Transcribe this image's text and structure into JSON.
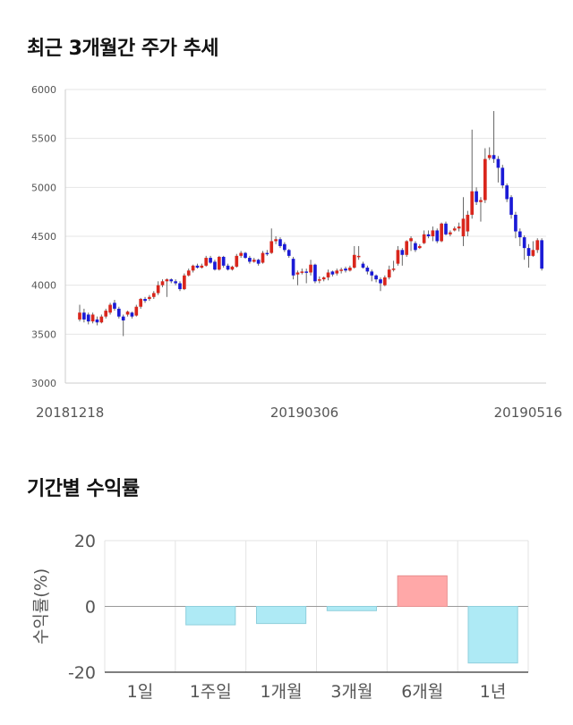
{
  "sections": {
    "price_title": "최근 3개월간 주가 추세",
    "return_title": "기간별 수익률"
  },
  "chart_data": [
    {
      "type": "candlestick",
      "title": "최근 3개월간 주가 추세",
      "ylim": [
        3000,
        6000
      ],
      "y_ticks": [
        3000,
        3500,
        4000,
        4500,
        5000,
        5500,
        6000
      ],
      "x_tick_labels": [
        "20181218",
        "20190306",
        "20190516"
      ],
      "grid": true,
      "colors": {
        "up": "#d9261c",
        "down": "#1a1ad6",
        "wick": "#666666"
      },
      "candles": [
        [
          3650,
          3720,
          3800,
          3630
        ],
        [
          3720,
          3650,
          3760,
          3620
        ],
        [
          3700,
          3630,
          3720,
          3600
        ],
        [
          3630,
          3700,
          3720,
          3610
        ],
        [
          3650,
          3620,
          3680,
          3590
        ],
        [
          3620,
          3680,
          3700,
          3610
        ],
        [
          3680,
          3740,
          3760,
          3660
        ],
        [
          3720,
          3800,
          3820,
          3700
        ],
        [
          3820,
          3760,
          3850,
          3740
        ],
        [
          3760,
          3680,
          3780,
          3660
        ],
        [
          3680,
          3640,
          3700,
          3480
        ],
        [
          3700,
          3730,
          3740,
          3680
        ],
        [
          3720,
          3680,
          3730,
          3660
        ],
        [
          3690,
          3780,
          3800,
          3680
        ],
        [
          3780,
          3860,
          3870,
          3760
        ],
        [
          3860,
          3840,
          3880,
          3820
        ],
        [
          3860,
          3880,
          3900,
          3840
        ],
        [
          3880,
          3920,
          3940,
          3860
        ],
        [
          3920,
          4000,
          4040,
          3900
        ],
        [
          4000,
          4040,
          4060,
          3980
        ],
        [
          4040,
          4060,
          4070,
          3880
        ],
        [
          4060,
          4040,
          4070,
          4020
        ],
        [
          4040,
          4020,
          4060,
          4000
        ],
        [
          4020,
          3960,
          4040,
          3940
        ],
        [
          3960,
          4100,
          4120,
          3950
        ],
        [
          4100,
          4150,
          4170,
          4090
        ],
        [
          4150,
          4200,
          4210,
          4130
        ],
        [
          4200,
          4180,
          4220,
          4170
        ],
        [
          4180,
          4200,
          4220,
          4170
        ],
        [
          4200,
          4280,
          4300,
          4190
        ],
        [
          4280,
          4230,
          4300,
          4220
        ],
        [
          4240,
          4160,
          4260,
          4150
        ],
        [
          4160,
          4290,
          4300,
          4150
        ],
        [
          4290,
          4200,
          4300,
          4180
        ],
        [
          4200,
          4160,
          4220,
          4150
        ],
        [
          4160,
          4190,
          4200,
          4150
        ],
        [
          4190,
          4300,
          4320,
          4180
        ],
        [
          4300,
          4330,
          4350,
          4280
        ],
        [
          4330,
          4280,
          4340,
          4270
        ],
        [
          4280,
          4240,
          4300,
          4220
        ],
        [
          4240,
          4260,
          4280,
          4230
        ],
        [
          4260,
          4220,
          4270,
          4200
        ],
        [
          4230,
          4330,
          4350,
          4220
        ],
        [
          4330,
          4320,
          4360,
          4300
        ],
        [
          4330,
          4450,
          4580,
          4320
        ],
        [
          4450,
          4470,
          4500,
          4420
        ],
        [
          4470,
          4400,
          4490,
          4380
        ],
        [
          4420,
          4360,
          4440,
          4340
        ],
        [
          4360,
          4300,
          4370,
          4280
        ],
        [
          4270,
          4100,
          4290,
          4060
        ],
        [
          4110,
          4130,
          4150,
          4000
        ],
        [
          4130,
          4140,
          4170,
          4110
        ],
        [
          4140,
          4130,
          4170,
          4020
        ],
        [
          4130,
          4210,
          4260,
          4100
        ],
        [
          4210,
          4040,
          4220,
          4020
        ],
        [
          4060,
          4060,
          4090,
          4020
        ],
        [
          4060,
          4080,
          4090,
          4040
        ],
        [
          4080,
          4130,
          4160,
          4050
        ],
        [
          4140,
          4110,
          4150,
          4090
        ],
        [
          4120,
          4150,
          4170,
          4100
        ],
        [
          4150,
          4160,
          4180,
          4120
        ],
        [
          4170,
          4150,
          4190,
          4130
        ],
        [
          4150,
          4180,
          4200,
          4140
        ],
        [
          4180,
          4310,
          4400,
          4170
        ],
        [
          4300,
          4300,
          4400,
          4260
        ],
        [
          4220,
          4180,
          4240,
          4170
        ],
        [
          4180,
          4140,
          4200,
          4110
        ],
        [
          4140,
          4100,
          4160,
          4040
        ],
        [
          4100,
          4060,
          4110,
          4030
        ],
        [
          4060,
          4020,
          4080,
          3940
        ],
        [
          4000,
          4080,
          4100,
          3990
        ],
        [
          4080,
          4160,
          4200,
          4060
        ],
        [
          4160,
          4170,
          4250,
          4140
        ],
        [
          4220,
          4360,
          4400,
          4200
        ],
        [
          4360,
          4310,
          4380,
          4200
        ],
        [
          4310,
          4450,
          4460,
          4290
        ],
        [
          4450,
          4480,
          4500,
          4350
        ],
        [
          4430,
          4360,
          4450,
          4340
        ],
        [
          4380,
          4400,
          4420,
          4370
        ],
        [
          4430,
          4520,
          4560,
          4420
        ],
        [
          4520,
          4500,
          4560,
          4480
        ],
        [
          4500,
          4560,
          4600,
          4450
        ],
        [
          4560,
          4450,
          4580,
          4430
        ],
        [
          4450,
          4630,
          4640,
          4440
        ],
        [
          4630,
          4520,
          4650,
          4510
        ],
        [
          4520,
          4540,
          4560,
          4500
        ],
        [
          4560,
          4580,
          4600,
          4550
        ],
        [
          4580,
          4600,
          4640,
          4550
        ],
        [
          4500,
          4680,
          4900,
          4400
        ],
        [
          4550,
          4720,
          4760,
          4500
        ],
        [
          4720,
          4960,
          5590,
          4680
        ],
        [
          4960,
          4850,
          5000,
          4820
        ],
        [
          4850,
          4870,
          4900,
          4650
        ],
        [
          4870,
          5290,
          5400,
          4840
        ],
        [
          5300,
          5330,
          5410,
          5280
        ],
        [
          5330,
          5290,
          5780,
          5250
        ],
        [
          5290,
          5200,
          5320,
          5050
        ],
        [
          5200,
          5020,
          5230,
          4990
        ],
        [
          5020,
          4880,
          5040,
          4850
        ],
        [
          4900,
          4720,
          4920,
          4680
        ],
        [
          4720,
          4550,
          4750,
          4480
        ],
        [
          4550,
          4490,
          4580,
          4400
        ],
        [
          4490,
          4380,
          4510,
          4260
        ],
        [
          4380,
          4300,
          4420,
          4180
        ],
        [
          4300,
          4360,
          4450,
          4290
        ],
        [
          4360,
          4460,
          4480,
          4330
        ],
        [
          4460,
          4170,
          4480,
          4150
        ]
      ]
    },
    {
      "type": "bar",
      "title": "기간별 수익률",
      "ylabel": "수익률(%)",
      "ylim": [
        -20,
        20
      ],
      "y_ticks": [
        -20,
        0,
        20
      ],
      "categories": [
        "1일",
        "1주일",
        "1개월",
        "3개월",
        "6개월",
        "1년"
      ],
      "values": [
        0.0,
        -5.6,
        -5.2,
        -1.3,
        9.3,
        -17.2
      ],
      "colors": {
        "positive": "#ffa8a8",
        "negative": "#aeeaf5"
      },
      "grid": true
    }
  ]
}
